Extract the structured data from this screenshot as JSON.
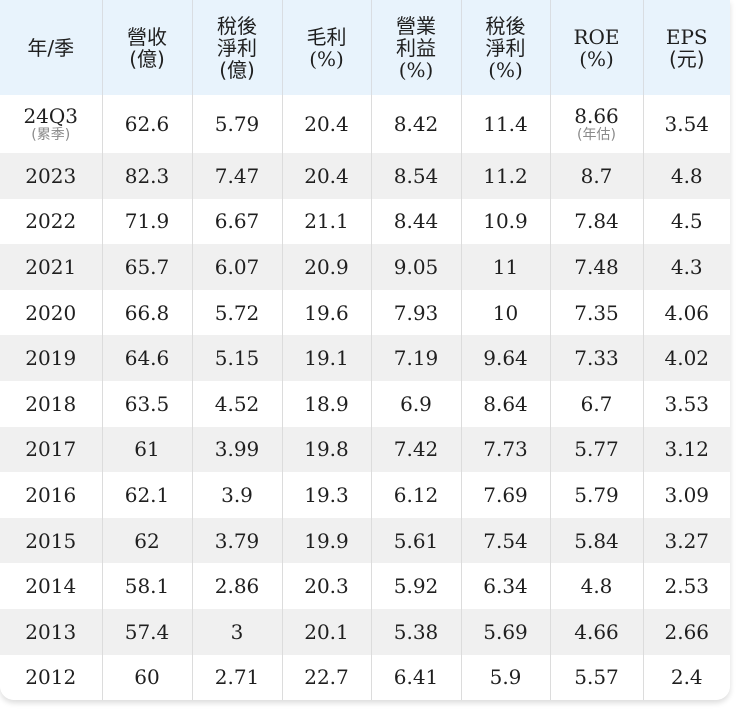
{
  "table": {
    "headers": [
      {
        "lines": [
          "年/季"
        ]
      },
      {
        "lines": [
          "營收",
          "(億)"
        ]
      },
      {
        "lines": [
          "稅後",
          "淨利",
          "(億)"
        ]
      },
      {
        "lines": [
          "毛利",
          "(%)"
        ]
      },
      {
        "lines": [
          "營業",
          "利益",
          "(%)"
        ]
      },
      {
        "lines": [
          "稅後",
          "淨利",
          "(%)"
        ]
      },
      {
        "lines": [
          "ROE",
          "(%)"
        ]
      },
      {
        "lines": [
          "EPS",
          "(元)"
        ]
      }
    ],
    "first_row": {
      "period": "24Q3",
      "period_note": "(累季)",
      "revenue": "62.6",
      "net_income": "5.79",
      "gross_margin": "20.4",
      "operating_margin": "8.42",
      "net_margin": "11.4",
      "roe": "8.66",
      "roe_note": "(年估)",
      "eps": "3.54"
    },
    "rows": [
      [
        "2023",
        "82.3",
        "7.47",
        "20.4",
        "8.54",
        "11.2",
        "8.7",
        "4.8"
      ],
      [
        "2022",
        "71.9",
        "6.67",
        "21.1",
        "8.44",
        "10.9",
        "7.84",
        "4.5"
      ],
      [
        "2021",
        "65.7",
        "6.07",
        "20.9",
        "9.05",
        "11",
        "7.48",
        "4.3"
      ],
      [
        "2020",
        "66.8",
        "5.72",
        "19.6",
        "7.93",
        "10",
        "7.35",
        "4.06"
      ],
      [
        "2019",
        "64.6",
        "5.15",
        "19.1",
        "7.19",
        "9.64",
        "7.33",
        "4.02"
      ],
      [
        "2018",
        "63.5",
        "4.52",
        "18.9",
        "6.9",
        "8.64",
        "6.7",
        "3.53"
      ],
      [
        "2017",
        "61",
        "3.99",
        "19.8",
        "7.42",
        "7.73",
        "5.77",
        "3.12"
      ],
      [
        "2016",
        "62.1",
        "3.9",
        "19.3",
        "6.12",
        "7.69",
        "5.79",
        "3.09"
      ],
      [
        "2015",
        "62",
        "3.79",
        "19.9",
        "5.61",
        "7.54",
        "5.84",
        "3.27"
      ],
      [
        "2014",
        "58.1",
        "2.86",
        "20.3",
        "5.92",
        "6.34",
        "4.8",
        "2.53"
      ],
      [
        "2013",
        "57.4",
        "3",
        "20.1",
        "5.38",
        "5.69",
        "4.66",
        "2.66"
      ],
      [
        "2012",
        "60",
        "2.71",
        "22.7",
        "6.41",
        "5.9",
        "5.57",
        "2.4"
      ]
    ]
  },
  "colors": {
    "header_bg": "#e8f3fc",
    "stripe_bg": "#f0f0f0",
    "note_text": "#8a8a8a"
  }
}
